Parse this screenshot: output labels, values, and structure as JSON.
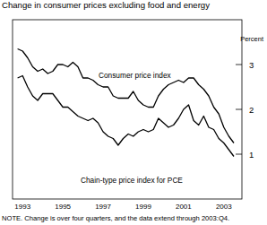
{
  "chart_data": {
    "type": "line",
    "title": "Change in consumer prices excluding food and energy",
    "ylabel": "Percent",
    "note": "NOTE. Change is over four quarters, and the data extend through 2003:Q4.",
    "x": [
      1993.25,
      1993.5,
      1993.75,
      1994,
      1994.25,
      1994.5,
      1994.75,
      1995,
      1995.25,
      1995.5,
      1995.75,
      1996,
      1996.25,
      1996.5,
      1996.75,
      1997,
      1997.25,
      1997.5,
      1997.75,
      1998,
      1998.25,
      1998.5,
      1998.75,
      1999,
      1999.25,
      1999.5,
      1999.75,
      2000,
      2000.25,
      2000.5,
      2000.75,
      2001,
      2001.25,
      2001.5,
      2001.75,
      2002,
      2002.25,
      2002.5,
      2002.75,
      2003,
      2003.25,
      2003.5,
      2003.75,
      2004
    ],
    "series": [
      {
        "name": "Consumer price index",
        "color": "#000000",
        "values": [
          3.35,
          3.3,
          3.15,
          2.95,
          2.85,
          2.9,
          2.8,
          2.85,
          3.0,
          3.0,
          2.95,
          3.05,
          2.95,
          2.7,
          2.7,
          2.65,
          2.55,
          2.5,
          2.5,
          2.3,
          2.25,
          2.25,
          2.25,
          2.4,
          2.2,
          2.1,
          2.05,
          2.05,
          2.3,
          2.45,
          2.55,
          2.6,
          2.65,
          2.6,
          2.7,
          2.7,
          2.55,
          2.45,
          2.3,
          2.05,
          1.9,
          1.6,
          1.4,
          1.25
        ]
      },
      {
        "name": "Chain-type price index for PCE",
        "color": "#000000",
        "values": [
          2.7,
          2.75,
          2.5,
          2.3,
          2.2,
          2.35,
          2.35,
          2.35,
          2.2,
          2.05,
          2.05,
          1.95,
          1.85,
          1.8,
          1.75,
          1.8,
          1.7,
          1.5,
          1.4,
          1.35,
          1.2,
          1.35,
          1.45,
          1.4,
          1.5,
          1.55,
          1.5,
          1.55,
          1.8,
          1.7,
          1.6,
          1.65,
          1.8,
          2.0,
          2.1,
          1.75,
          1.65,
          1.85,
          1.6,
          1.55,
          1.35,
          1.25,
          1.1,
          0.95
        ]
      }
    ],
    "xlim": [
      1993.0,
      2004.4
    ],
    "xticks": [
      {
        "value": 1993.5,
        "label": "1993"
      },
      {
        "value": 1995.5,
        "label": "1995"
      },
      {
        "value": 1997.5,
        "label": "1997"
      },
      {
        "value": 1999.5,
        "label": "1999"
      },
      {
        "value": 2001.5,
        "label": "2001"
      },
      {
        "value": 2003.5,
        "label": "2003"
      }
    ],
    "ylim": [
      0,
      4
    ],
    "yticks": [
      1,
      2,
      3
    ],
    "grid": false
  }
}
